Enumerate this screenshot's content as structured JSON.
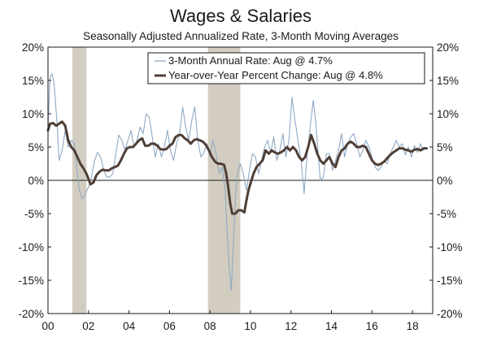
{
  "chart_data": {
    "type": "line",
    "title": "Wages & Salaries",
    "subtitle": "Seasonally Adjusted Annualized Rate, 3-Month Moving Averages",
    "xlabel": "",
    "ylabel": "",
    "xlim": [
      2000,
      2019
    ],
    "ylim": [
      -20,
      20
    ],
    "x_ticks": [
      2000,
      2002,
      2004,
      2006,
      2008,
      2010,
      2012,
      2014,
      2016,
      2018
    ],
    "x_tick_labels": [
      "00",
      "02",
      "04",
      "06",
      "08",
      "10",
      "12",
      "14",
      "16",
      "18"
    ],
    "y_ticks": [
      20,
      15,
      10,
      5,
      0,
      -5,
      -10,
      -15,
      -20
    ],
    "y_tick_labels": [
      "20%",
      "15%",
      "10%",
      "5%",
      "0%",
      "-5%",
      "-10%",
      "-15%",
      "-20%"
    ],
    "grid": false,
    "dual_axis_labels": true,
    "legend_position": "top-right",
    "recessions": [
      [
        2001.2,
        2001.9
      ],
      [
        2007.9,
        2009.5
      ]
    ],
    "series": [
      {
        "name": "3-Month Annual Rate: Aug @ 4.7%",
        "color": "#8fa9c4",
        "style": "thin",
        "points": [
          [
            2000.0,
            7.5
          ],
          [
            2000.1,
            15.5
          ],
          [
            2000.2,
            16
          ],
          [
            2000.3,
            14.5
          ],
          [
            2000.45,
            8.5
          ],
          [
            2000.55,
            3
          ],
          [
            2000.7,
            4.5
          ],
          [
            2000.85,
            7.5
          ],
          [
            2001.0,
            5
          ],
          [
            2001.15,
            6
          ],
          [
            2001.3,
            5.5
          ],
          [
            2001.45,
            1
          ],
          [
            2001.55,
            -1.5
          ],
          [
            2001.7,
            -2.8
          ],
          [
            2001.85,
            -2
          ],
          [
            2002.0,
            -1
          ],
          [
            2002.15,
            0.5
          ],
          [
            2002.3,
            3
          ],
          [
            2002.45,
            4.2
          ],
          [
            2002.6,
            3.5
          ],
          [
            2002.75,
            1.5
          ],
          [
            2002.9,
            0.5
          ],
          [
            2003.05,
            0.5
          ],
          [
            2003.2,
            1
          ],
          [
            2003.35,
            4
          ],
          [
            2003.5,
            6.8
          ],
          [
            2003.65,
            6
          ],
          [
            2003.8,
            4.5
          ],
          [
            2003.95,
            6
          ],
          [
            2004.1,
            7.5
          ],
          [
            2004.25,
            5
          ],
          [
            2004.4,
            6
          ],
          [
            2004.55,
            8
          ],
          [
            2004.7,
            7
          ],
          [
            2004.85,
            10
          ],
          [
            2005.0,
            9.5
          ],
          [
            2005.15,
            6.5
          ],
          [
            2005.3,
            3.5
          ],
          [
            2005.45,
            5.5
          ],
          [
            2005.6,
            3.5
          ],
          [
            2005.75,
            5
          ],
          [
            2005.9,
            7.5
          ],
          [
            2006.05,
            4.5
          ],
          [
            2006.2,
            3
          ],
          [
            2006.35,
            5.5
          ],
          [
            2006.5,
            7
          ],
          [
            2006.65,
            11
          ],
          [
            2006.8,
            8
          ],
          [
            2006.95,
            6
          ],
          [
            2007.1,
            9
          ],
          [
            2007.25,
            11
          ],
          [
            2007.4,
            6
          ],
          [
            2007.55,
            3.5
          ],
          [
            2007.7,
            4.2
          ],
          [
            2007.85,
            5.5
          ],
          [
            2008.0,
            3.5
          ],
          [
            2008.15,
            6
          ],
          [
            2008.3,
            4
          ],
          [
            2008.45,
            1
          ],
          [
            2008.6,
            2
          ],
          [
            2008.75,
            -1.5
          ],
          [
            2008.85,
            -8
          ],
          [
            2008.95,
            -13
          ],
          [
            2009.05,
            -16.5
          ],
          [
            2009.15,
            -10
          ],
          [
            2009.25,
            -3
          ],
          [
            2009.35,
            1
          ],
          [
            2009.5,
            2.5
          ],
          [
            2009.65,
            1
          ],
          [
            2009.8,
            -1.5
          ],
          [
            2009.95,
            1.5
          ],
          [
            2010.1,
            4
          ],
          [
            2010.25,
            3.5
          ],
          [
            2010.4,
            1
          ],
          [
            2010.55,
            3
          ],
          [
            2010.7,
            5
          ],
          [
            2010.85,
            6
          ],
          [
            2011.0,
            4.2
          ],
          [
            2011.15,
            6.5
          ],
          [
            2011.3,
            3
          ],
          [
            2011.45,
            4.5
          ],
          [
            2011.6,
            7
          ],
          [
            2011.75,
            3.5
          ],
          [
            2011.9,
            6
          ],
          [
            2012.05,
            12.5
          ],
          [
            2012.2,
            9
          ],
          [
            2012.35,
            6
          ],
          [
            2012.5,
            3
          ],
          [
            2012.65,
            -2
          ],
          [
            2012.8,
            4
          ],
          [
            2012.95,
            8
          ],
          [
            2013.1,
            12
          ],
          [
            2013.2,
            9.5
          ],
          [
            2013.35,
            4
          ],
          [
            2013.45,
            0
          ],
          [
            2013.6,
            0.5
          ],
          [
            2013.75,
            4
          ],
          [
            2013.9,
            4
          ],
          [
            2014.05,
            1.5
          ],
          [
            2014.2,
            3
          ],
          [
            2014.35,
            4.5
          ],
          [
            2014.5,
            7
          ],
          [
            2014.65,
            3.5
          ],
          [
            2014.8,
            5.5
          ],
          [
            2014.95,
            6.5
          ],
          [
            2015.1,
            7
          ],
          [
            2015.25,
            5.5
          ],
          [
            2015.4,
            3.5
          ],
          [
            2015.55,
            4.5
          ],
          [
            2015.7,
            6
          ],
          [
            2015.85,
            5
          ],
          [
            2016.0,
            3.5
          ],
          [
            2016.15,
            2
          ],
          [
            2016.3,
            1.5
          ],
          [
            2016.45,
            2
          ],
          [
            2016.6,
            3
          ],
          [
            2016.75,
            2.5
          ],
          [
            2016.9,
            4
          ],
          [
            2017.05,
            5
          ],
          [
            2017.2,
            6
          ],
          [
            2017.35,
            5
          ],
          [
            2017.5,
            5.5
          ],
          [
            2017.65,
            3.8
          ],
          [
            2017.8,
            5
          ],
          [
            2017.95,
            3.5
          ],
          [
            2018.1,
            5.2
          ],
          [
            2018.25,
            4.2
          ],
          [
            2018.4,
            5.5
          ],
          [
            2018.5,
            4.5
          ],
          [
            2018.6,
            4.8
          ],
          [
            2018.7,
            4.7
          ]
        ]
      },
      {
        "name": "Year-over-Year Percent Change: Aug @ 4.8%",
        "color": "#4f3f37",
        "style": "thick",
        "points": [
          [
            2000.0,
            7.5
          ],
          [
            2000.1,
            8.5
          ],
          [
            2000.25,
            8.6
          ],
          [
            2000.4,
            8.2
          ],
          [
            2000.55,
            8.5
          ],
          [
            2000.7,
            8.8
          ],
          [
            2000.85,
            8.2
          ],
          [
            2001.0,
            6
          ],
          [
            2001.15,
            5
          ],
          [
            2001.3,
            4.5
          ],
          [
            2001.45,
            3.5
          ],
          [
            2001.6,
            2.5
          ],
          [
            2001.75,
            1.8
          ],
          [
            2001.9,
            1
          ],
          [
            2002.0,
            0.2
          ],
          [
            2002.1,
            -0.6
          ],
          [
            2002.25,
            -0.3
          ],
          [
            2002.4,
            0.8
          ],
          [
            2002.55,
            1.3
          ],
          [
            2002.7,
            1.6
          ],
          [
            2002.85,
            1.5
          ],
          [
            2003.0,
            1.5
          ],
          [
            2003.15,
            1.8
          ],
          [
            2003.3,
            2
          ],
          [
            2003.45,
            2.2
          ],
          [
            2003.6,
            3
          ],
          [
            2003.75,
            4
          ],
          [
            2003.9,
            4.8
          ],
          [
            2004.05,
            5
          ],
          [
            2004.2,
            5
          ],
          [
            2004.35,
            5.5
          ],
          [
            2004.5,
            6
          ],
          [
            2004.65,
            6.3
          ],
          [
            2004.8,
            5.2
          ],
          [
            2004.95,
            5.2
          ],
          [
            2005.1,
            5.5
          ],
          [
            2005.25,
            5.5
          ],
          [
            2005.4,
            5.2
          ],
          [
            2005.55,
            4.7
          ],
          [
            2005.7,
            4.6
          ],
          [
            2005.85,
            4.7
          ],
          [
            2006.0,
            5.2
          ],
          [
            2006.15,
            5.5
          ],
          [
            2006.3,
            6.5
          ],
          [
            2006.45,
            6.8
          ],
          [
            2006.6,
            6.8
          ],
          [
            2006.75,
            6.3
          ],
          [
            2006.9,
            6
          ],
          [
            2007.05,
            5.5
          ],
          [
            2007.2,
            6
          ],
          [
            2007.35,
            6.2
          ],
          [
            2007.5,
            6
          ],
          [
            2007.65,
            5.8
          ],
          [
            2007.8,
            5.3
          ],
          [
            2007.95,
            4.5
          ],
          [
            2008.1,
            3.5
          ],
          [
            2008.25,
            2.8
          ],
          [
            2008.4,
            2.5
          ],
          [
            2008.55,
            2.5
          ],
          [
            2008.7,
            2.3
          ],
          [
            2008.8,
            1
          ],
          [
            2008.9,
            -1
          ],
          [
            2009.0,
            -3.5
          ],
          [
            2009.1,
            -5
          ],
          [
            2009.25,
            -5
          ],
          [
            2009.4,
            -4.5
          ],
          [
            2009.55,
            -4.5
          ],
          [
            2009.7,
            -4.8
          ],
          [
            2009.8,
            -3
          ],
          [
            2009.9,
            -1.5
          ],
          [
            2010.0,
            -0.5
          ],
          [
            2010.15,
            1
          ],
          [
            2010.3,
            2
          ],
          [
            2010.45,
            2.5
          ],
          [
            2010.6,
            3
          ],
          [
            2010.75,
            4.5
          ],
          [
            2010.9,
            4
          ],
          [
            2011.05,
            4.5
          ],
          [
            2011.2,
            4.2
          ],
          [
            2011.35,
            4
          ],
          [
            2011.5,
            4.2
          ],
          [
            2011.65,
            4.5
          ],
          [
            2011.8,
            5
          ],
          [
            2011.95,
            4.5
          ],
          [
            2012.1,
            5
          ],
          [
            2012.25,
            4.5
          ],
          [
            2012.4,
            3.5
          ],
          [
            2012.55,
            3
          ],
          [
            2012.7,
            3.5
          ],
          [
            2012.85,
            5
          ],
          [
            2013.0,
            6.8
          ],
          [
            2013.15,
            5.5
          ],
          [
            2013.3,
            4
          ],
          [
            2013.45,
            3
          ],
          [
            2013.6,
            2.5
          ],
          [
            2013.75,
            3
          ],
          [
            2013.9,
            3.5
          ],
          [
            2014.05,
            2.5
          ],
          [
            2014.2,
            2
          ],
          [
            2014.35,
            3.5
          ],
          [
            2014.5,
            4.5
          ],
          [
            2014.65,
            4.8
          ],
          [
            2014.8,
            5.5
          ],
          [
            2014.95,
            5.8
          ],
          [
            2015.1,
            5.5
          ],
          [
            2015.25,
            5
          ],
          [
            2015.4,
            5
          ],
          [
            2015.55,
            5.2
          ],
          [
            2015.7,
            5
          ],
          [
            2015.85,
            4
          ],
          [
            2016.0,
            3
          ],
          [
            2016.15,
            2.5
          ],
          [
            2016.3,
            2.3
          ],
          [
            2016.45,
            2.5
          ],
          [
            2016.6,
            2.8
          ],
          [
            2016.75,
            3.3
          ],
          [
            2016.9,
            3.8
          ],
          [
            2017.05,
            4.2
          ],
          [
            2017.2,
            4.5
          ],
          [
            2017.35,
            4.8
          ],
          [
            2017.5,
            4.8
          ],
          [
            2017.65,
            4.6
          ],
          [
            2017.8,
            4.5
          ],
          [
            2017.95,
            4.3
          ],
          [
            2018.1,
            4.6
          ],
          [
            2018.25,
            4.7
          ],
          [
            2018.4,
            4.5
          ],
          [
            2018.55,
            4.8
          ],
          [
            2018.7,
            4.8
          ]
        ]
      }
    ]
  }
}
